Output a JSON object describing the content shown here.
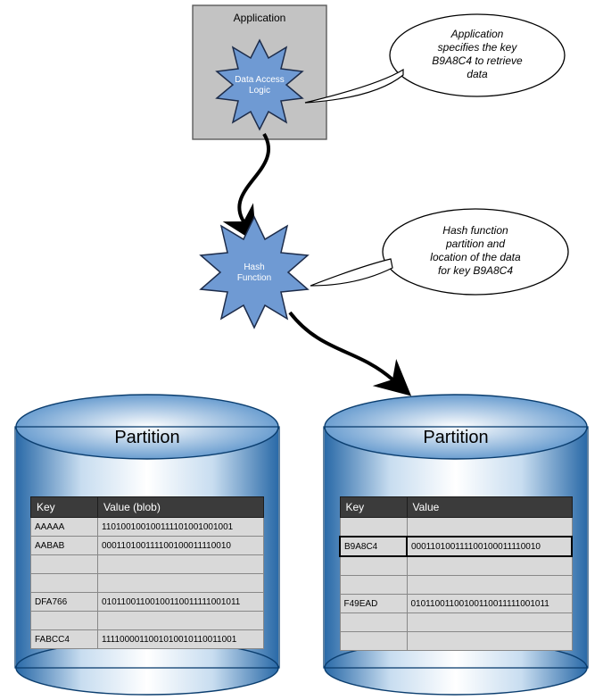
{
  "application": {
    "box_fill": "#c3c3c3",
    "box_stroke": "#5b5b5b",
    "label": "Application",
    "dal_label1": "Data Access",
    "dal_label2": "Logic",
    "star_fill": "#6f9ad3",
    "star_stroke": "#1d2c4a"
  },
  "hash": {
    "label1": "Hash",
    "label2": "Function",
    "star_fill": "#6f9ad3",
    "star_stroke": "#1d2c4a"
  },
  "callouts": {
    "top_line1": "Application",
    "top_line2": "specifies the key",
    "top_line3": "B9A8C4 to retrieve",
    "top_line4": "data",
    "bottom_line1": "Hash function",
    "bottom_line2": "partition and",
    "bottom_line3": "location of the data",
    "bottom_line4": "for key B9A8C4",
    "fill": "#ffffff",
    "stroke": "#000000",
    "font": "italic 12px 'Segoe UI'"
  },
  "cylinder": {
    "fill_mid": "#ffffff",
    "fill_edge": "#2a6aa8",
    "stroke": "#0b3e6f",
    "title": "Partition",
    "title_fontsize": 20
  },
  "arrow": {
    "color": "#000000"
  },
  "table_left": {
    "headers": [
      "Key",
      "Value (blob)"
    ],
    "rows": [
      [
        "AAAAA",
        "110100100100111101001001001"
      ],
      [
        "AABAB",
        "000110100111100100011110010"
      ],
      [
        "",
        ""
      ],
      [
        "",
        ""
      ],
      [
        "DFA766",
        "0101100110010011001111100101​1"
      ],
      [
        "",
        ""
      ],
      [
        "FABCC4",
        "1111000011001010010110011001"
      ]
    ]
  },
  "table_right": {
    "headers": [
      "Key",
      "Value"
    ],
    "highlight_row_index": 1,
    "rows": [
      [
        "",
        ""
      ],
      [
        "B9A8C4",
        "000110100111100100011110010"
      ],
      [
        "",
        ""
      ],
      [
        "",
        ""
      ],
      [
        "F49EAD",
        "0101100110010011001111100101​1"
      ],
      [
        "",
        ""
      ],
      [
        "",
        ""
      ]
    ]
  }
}
